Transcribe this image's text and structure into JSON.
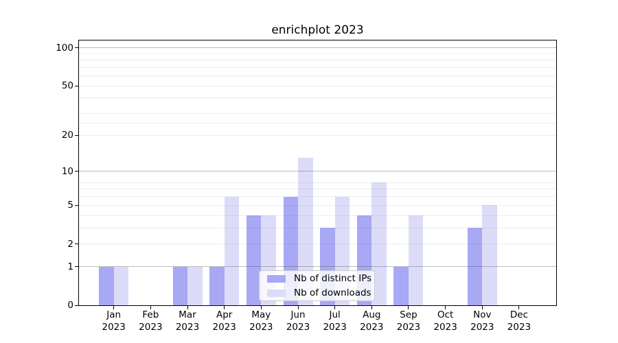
{
  "chart_data": {
    "type": "bar",
    "title": "enrichplot 2023",
    "categories": [
      "Jan",
      "Feb",
      "Mar",
      "Apr",
      "May",
      "Jun",
      "Jul",
      "Aug",
      "Sep",
      "Oct",
      "Nov",
      "Dec"
    ],
    "year_label": "2023",
    "series": [
      {
        "name": "Nb of distinct IPs",
        "color": "#a8a8f5",
        "values": [
          1,
          0,
          1,
          1,
          4,
          6,
          3,
          4,
          1,
          0,
          3,
          0
        ]
      },
      {
        "name": "Nb of downloads",
        "color": "#dcdcf9",
        "values": [
          1,
          0,
          1,
          6,
          4,
          13,
          6,
          8,
          4,
          0,
          5,
          0
        ]
      }
    ],
    "xlabel": "",
    "ylabel": "",
    "y_scale": "log10(1+y)",
    "y_ticks": [
      0,
      1,
      2,
      5,
      10,
      20,
      50,
      100
    ],
    "y_major_gridlines": [
      1,
      10,
      100
    ],
    "y_minor_gridlines": [
      2,
      3,
      4,
      5,
      6,
      7,
      8,
      20,
      25,
      30,
      40,
      50,
      60,
      70,
      80,
      90
    ],
    "ylim": [
      0,
      117
    ],
    "grid": "on, drawn above bars",
    "legend": {
      "position": "lower center",
      "entries": [
        "Nb of distinct IPs",
        "Nb of downloads"
      ]
    },
    "colors": {
      "axis": "#000000",
      "major_grid": "#c4c4c4",
      "minor_grid": "#e9e9e9",
      "background": "#ffffff",
      "text": "#000000"
    }
  }
}
